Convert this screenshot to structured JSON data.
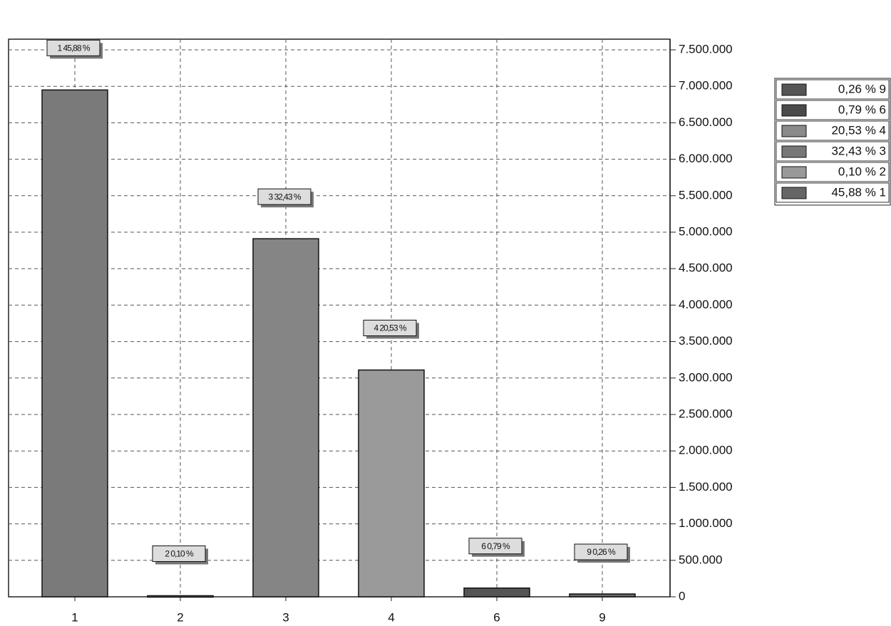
{
  "chart_data": {
    "type": "bar",
    "categories": [
      "1",
      "2",
      "3",
      "4",
      "6",
      "9"
    ],
    "values": [
      6950000,
      15000,
      4910000,
      3110000,
      120000,
      39000
    ],
    "colors": [
      "#7a7a7a",
      "#666666",
      "#858585",
      "#9a9a9a",
      "#555555",
      "#6a6a6a"
    ],
    "bar_labels": [
      "1 45,88 %",
      "2 0,10 %",
      "3 32,43 %",
      "4 20,53 %",
      "6 0,79 %",
      "9 0,26 %"
    ],
    "ylim": [
      0,
      7500000
    ],
    "yticks": [
      0,
      {
        "value": 500000,
        "label": "500.000"
      },
      {
        "value": 1000000,
        "label": "1.000.000"
      },
      {
        "value": 1500000,
        "label": "1.500.000"
      },
      {
        "value": 2000000,
        "label": "2.000.000"
      },
      {
        "value": 2500000,
        "label": "2.500.000"
      },
      {
        "value": 3000000,
        "label": "3.000.000"
      },
      {
        "value": 3500000,
        "label": "3.500.000"
      },
      {
        "value": 4000000,
        "label": "4.000.000"
      },
      {
        "value": 4500000,
        "label": "4.500.000"
      },
      {
        "value": 5000000,
        "label": "5.000.000"
      },
      {
        "value": 5500000,
        "label": "5.500.000"
      },
      {
        "value": 6000000,
        "label": "6.000.000"
      },
      {
        "value": 6500000,
        "label": "6.500.000"
      },
      {
        "value": 7000000,
        "label": "7.000.000"
      },
      {
        "value": 7500000,
        "label": "7.500.000"
      }
    ],
    "grid": true,
    "legend": [
      {
        "label": "0,26 % 9",
        "color": "#555555"
      },
      {
        "label": "0,79 % 6",
        "color": "#4a4a4a"
      },
      {
        "label": "20,53 % 4",
        "color": "#8a8a8a"
      },
      {
        "label": "32,43 % 3",
        "color": "#777777"
      },
      {
        "label": "0,10 % 2",
        "color": "#999999"
      },
      {
        "label": "45,88 % 1",
        "color": "#666666"
      }
    ]
  }
}
